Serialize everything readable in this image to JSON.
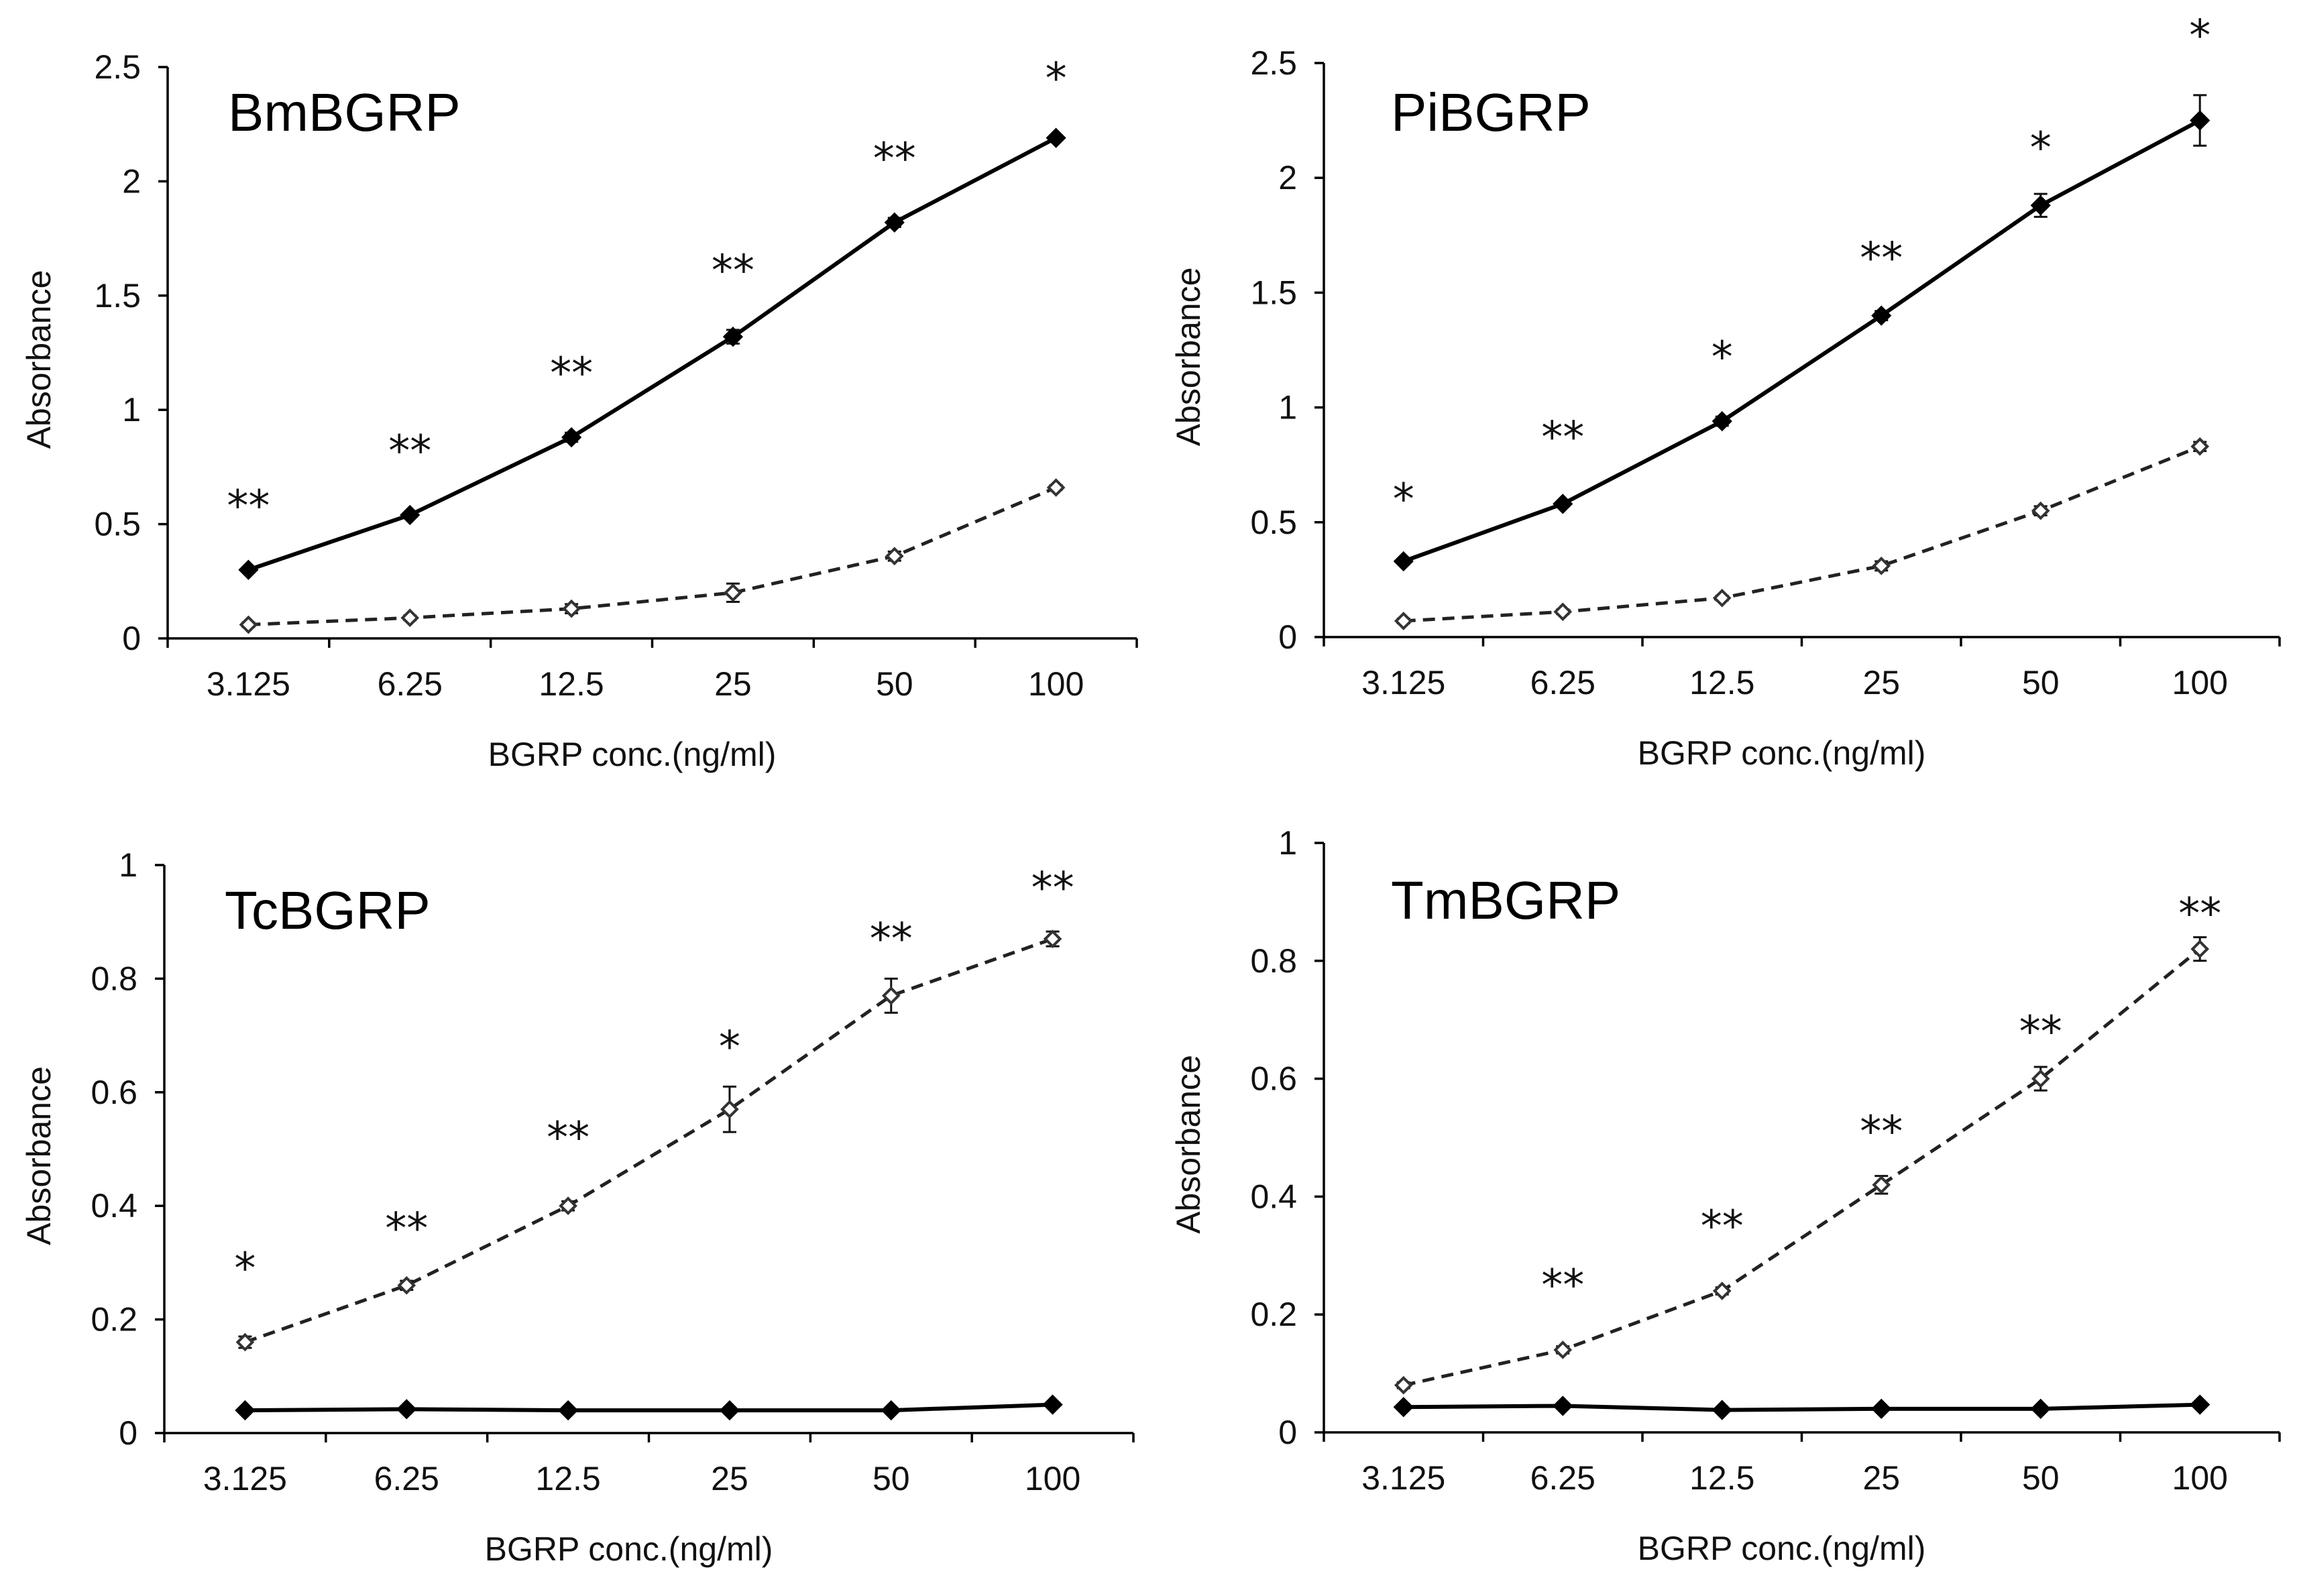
{
  "figure": "BGRP binding absorbance panels",
  "chart_data": [
    {
      "type": "line",
      "title": "BmBGRP",
      "xlabel": "BGRP conc.(ng/ml)",
      "ylabel": "Absorbance",
      "categories": [
        "3.125",
        "6.25",
        "12.5",
        "25",
        "50",
        "100"
      ],
      "ylim": [
        0,
        2.5
      ],
      "yticks": [
        "0",
        "0.5",
        "1",
        "1.5",
        "2",
        "2.5"
      ],
      "series": [
        {
          "name": "solid-filled",
          "style": "solid",
          "color": "#000000",
          "values": [
            0.3,
            0.54,
            0.88,
            1.32,
            1.82,
            2.19
          ],
          "errors": [
            0.01,
            0.01,
            0.02,
            0.03,
            0.02,
            0.01
          ]
        },
        {
          "name": "dashed-open",
          "style": "dashed",
          "color": "#333333",
          "values": [
            0.06,
            0.09,
            0.13,
            0.2,
            0.36,
            0.66
          ],
          "errors": [
            0.01,
            0.01,
            0.02,
            0.04,
            0.02,
            0.01
          ]
        }
      ],
      "significance": [
        {
          "text": "**",
          "value": 0.58
        },
        {
          "text": "**",
          "value": 0.82
        },
        {
          "text": "**",
          "value": 1.16
        },
        {
          "text": "**",
          "value": 1.61
        },
        {
          "text": "**",
          "value": 2.1
        },
        {
          "text": "*",
          "value": 2.45
        }
      ]
    },
    {
      "type": "line",
      "title": "PiBGRP",
      "xlabel": "BGRP conc.(ng/ml)",
      "ylabel": "Absorbance",
      "categories": [
        "3.125",
        "6.25",
        "12.5",
        "25",
        "50",
        "100"
      ],
      "ylim": [
        0,
        2.5
      ],
      "yticks": [
        "0",
        "0.5",
        "1",
        "1.5",
        "2",
        "2.5"
      ],
      "series": [
        {
          "name": "solid-filled",
          "style": "solid",
          "color": "#000000",
          "values": [
            0.33,
            0.58,
            0.94,
            1.4,
            1.88,
            2.25
          ],
          "errors": [
            0.01,
            0.01,
            0.02,
            0.02,
            0.05,
            0.11
          ]
        },
        {
          "name": "dashed-open",
          "style": "dashed",
          "color": "#333333",
          "values": [
            0.07,
            0.11,
            0.17,
            0.31,
            0.55,
            0.83
          ],
          "errors": [
            0.01,
            0.01,
            0.01,
            0.02,
            0.02,
            0.02
          ]
        }
      ],
      "significance": [
        {
          "text": "*",
          "value": 0.6
        },
        {
          "text": "**",
          "value": 0.87
        },
        {
          "text": "*",
          "value": 1.22
        },
        {
          "text": "**",
          "value": 1.65
        },
        {
          "text": "*",
          "value": 2.13
        },
        {
          "text": "*",
          "value": 2.62
        }
      ]
    },
    {
      "type": "line",
      "title": "TcBGRP",
      "xlabel": "BGRP conc.(ng/ml)",
      "ylabel": "Absorbance",
      "categories": [
        "3.125",
        "6.25",
        "12.5",
        "25",
        "50",
        "100"
      ],
      "ylim": [
        0,
        1
      ],
      "yticks": [
        "0",
        "0.2",
        "0.4",
        "0.6",
        "0.8",
        "1"
      ],
      "series": [
        {
          "name": "solid-filled",
          "style": "solid",
          "color": "#000000",
          "values": [
            0.04,
            0.042,
            0.04,
            0.04,
            0.04,
            0.05
          ],
          "errors": [
            0.003,
            0.003,
            0.003,
            0.003,
            0.003,
            0.003
          ]
        },
        {
          "name": "dashed-open",
          "style": "dashed",
          "color": "#333333",
          "values": [
            0.16,
            0.26,
            0.4,
            0.57,
            0.77,
            0.87
          ],
          "errors": [
            0.01,
            0.008,
            0.008,
            0.04,
            0.03,
            0.013
          ]
        }
      ],
      "significance": [
        {
          "text": "*",
          "value": 0.29
        },
        {
          "text": "**",
          "value": 0.36
        },
        {
          "text": "**",
          "value": 0.52
        },
        {
          "text": "*",
          "value": 0.68
        },
        {
          "text": "**",
          "value": 0.87
        },
        {
          "text": "**",
          "value": 0.96
        }
      ]
    },
    {
      "type": "line",
      "title": "TmBGRP",
      "xlabel": "BGRP conc.(ng/ml)",
      "ylabel": "Absorbance",
      "categories": [
        "3.125",
        "6.25",
        "12.5",
        "25",
        "50",
        "100"
      ],
      "ylim": [
        0,
        1
      ],
      "yticks": [
        "0",
        "0.2",
        "0.4",
        "0.6",
        "0.8",
        "1"
      ],
      "series": [
        {
          "name": "solid-filled",
          "style": "solid",
          "color": "#000000",
          "values": [
            0.043,
            0.045,
            0.038,
            0.04,
            0.04,
            0.047
          ],
          "errors": [
            0.003,
            0.003,
            0.003,
            0.003,
            0.003,
            0.003
          ]
        },
        {
          "name": "dashed-open",
          "style": "dashed",
          "color": "#333333",
          "values": [
            0.08,
            0.14,
            0.24,
            0.42,
            0.6,
            0.82
          ],
          "errors": [
            0.005,
            0.006,
            0.006,
            0.015,
            0.02,
            0.02
          ]
        }
      ],
      "significance": [
        {
          "text": "**",
          "value": 0.25
        },
        {
          "text": "**",
          "value": 0.35
        },
        {
          "text": "**",
          "value": 0.51
        },
        {
          "text": "**",
          "value": 0.68
        },
        {
          "text": "**",
          "value": 0.88
        }
      ],
      "significance_start_index": 1
    }
  ]
}
